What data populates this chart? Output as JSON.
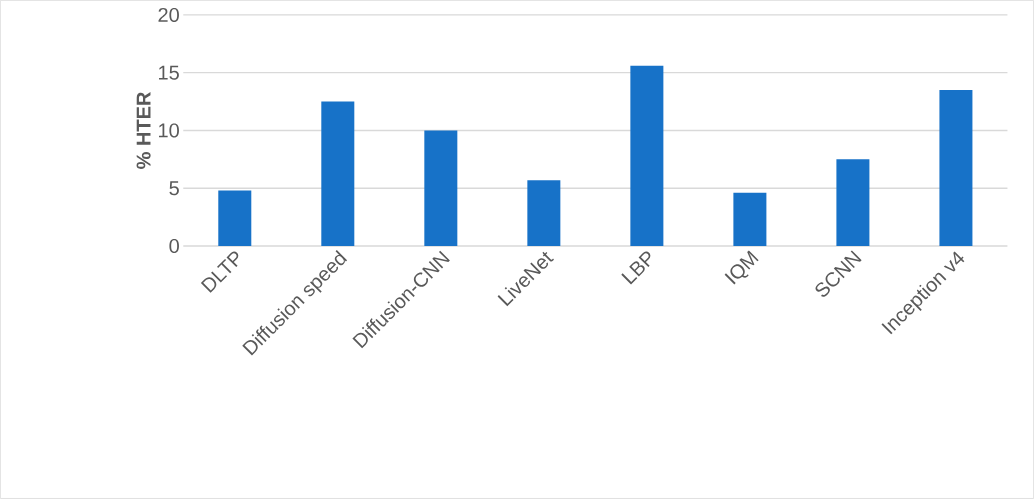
{
  "chart_data": {
    "type": "bar",
    "ylabel": "% HTER",
    "categories": [
      "DLTP",
      "Diffusion speed",
      "Diffusion-CNN",
      "LiveNet",
      "LBP",
      "IQM",
      "SCNN",
      "Inception v4"
    ],
    "values": [
      4.8,
      12.5,
      10,
      5.7,
      15.6,
      4.6,
      7.5,
      13.5
    ],
    "color": "#1772c8",
    "ylim": [
      0,
      20
    ],
    "yticks": [
      0,
      5,
      10,
      15,
      20
    ],
    "grid": "y"
  }
}
